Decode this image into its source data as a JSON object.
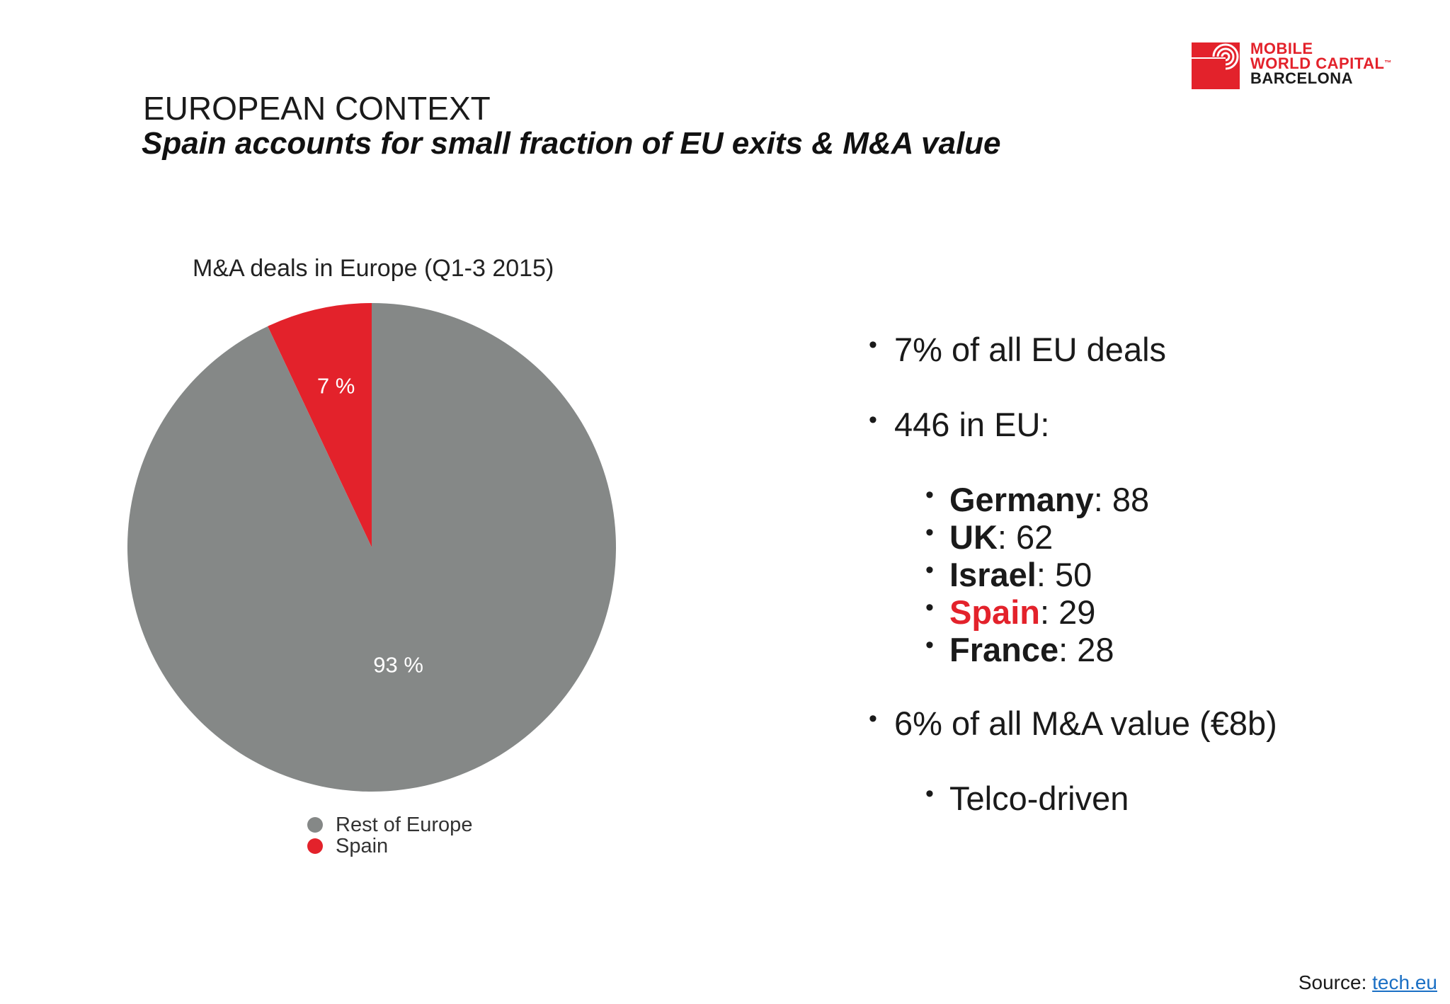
{
  "logo": {
    "line1": "MOBILE",
    "line2": "WORLD CAPITAL",
    "tm": "™",
    "line3": "BARCELONA",
    "brand_color": "#e3222b"
  },
  "header": {
    "kicker": "EUROPEAN CONTEXT",
    "title": "Spain accounts for small fraction of EU exits & M&A value"
  },
  "chart_data": {
    "type": "pie",
    "title": "M&A deals in Europe (Q1-3 2015)",
    "slices": [
      {
        "label": "Spain",
        "value": 7,
        "display": "7 %",
        "color": "#e3222b"
      },
      {
        "label": "Rest of Europe",
        "value": 93,
        "display": "93 %",
        "color": "#858887"
      }
    ],
    "legend": [
      "Rest of Europe",
      "Spain"
    ],
    "legend_placement": "bottom"
  },
  "bullets": {
    "b1": "7% of all EU deals",
    "b2": "446 in EU:",
    "countries": [
      {
        "name": "Germany",
        "value": ": 88",
        "highlight": false
      },
      {
        "name": "UK",
        "value": ": 62",
        "highlight": false
      },
      {
        "name": "Israel",
        "value": ": 50",
        "highlight": false
      },
      {
        "name": "Spain",
        "value": ": 29",
        "highlight": true
      },
      {
        "name": "France",
        "value": ": 28",
        "highlight": false
      }
    ],
    "b3": "6% of all M&A value (€8b)",
    "b4": "Telco-driven",
    "bullet_char": "•"
  },
  "footer": {
    "source_label": "Source: ",
    "source_link": "tech.eu"
  }
}
